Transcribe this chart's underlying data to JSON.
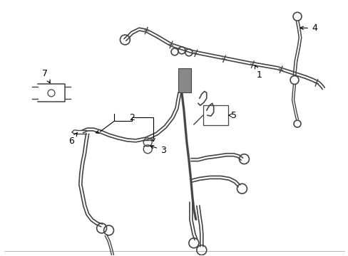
{
  "bg_color": "#ffffff",
  "line_color": "#444444",
  "label_color": "#000000",
  "figsize": [
    4.89,
    3.6
  ],
  "dpi": 100,
  "border_color": "#cccccc",
  "clip_color": "#555555"
}
